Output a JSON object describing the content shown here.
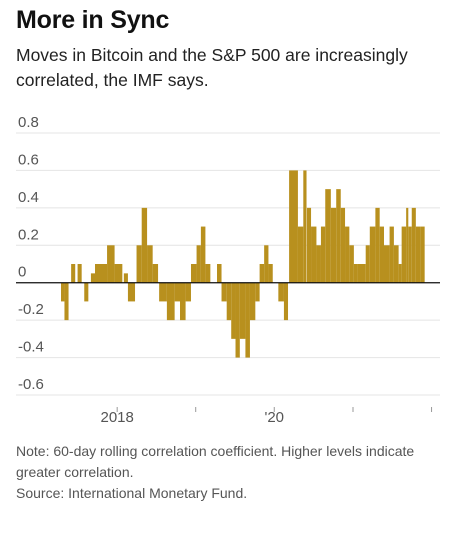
{
  "header": {
    "title": "More in Sync",
    "subtitle": "Moves in Bitcoin and the S&P 500 are increasingly correlated, the IMF says."
  },
  "footer": {
    "note": "Note: 60-day rolling correlation coefficient. Higher levels indicate greater correlation.",
    "source": "Source: International Monetary Fund."
  },
  "colors": {
    "bar": "#b8901e",
    "zero_line": "#111111",
    "grid": "#e4e4e4",
    "text": "#555555"
  },
  "chart_data": {
    "type": "bar",
    "title": "More in Sync",
    "xlabel": "",
    "ylabel": "",
    "ylim": [
      -0.6,
      0.8
    ],
    "yticks": [
      {
        "value": 0.8,
        "label": "0.8"
      },
      {
        "value": 0.6,
        "label": "0.6"
      },
      {
        "value": 0.4,
        "label": "0.4"
      },
      {
        "value": 0.2,
        "label": "0.2"
      },
      {
        "value": 0,
        "label": "0"
      },
      {
        "value": -0.2,
        "label": "-0.2"
      },
      {
        "value": -0.4,
        "label": "-0.4"
      },
      {
        "value": -0.6,
        "label": "-0.6"
      }
    ],
    "xticks": [
      {
        "date": "2018-01-01",
        "label": "2018"
      },
      {
        "date": "2019-01-01",
        "label": ""
      },
      {
        "date": "2020-01-01",
        "label": "'20"
      },
      {
        "date": "2021-01-01",
        "label": ""
      },
      {
        "date": "2022-01-01",
        "label": ""
      }
    ],
    "x_range": [
      "2017-04-01",
      "2022-01-31"
    ],
    "grid": true,
    "legend": "none",
    "series": [
      {
        "values": [
          {
            "start": "2017-04-15",
            "end": "2017-05-01",
            "value": -0.1
          },
          {
            "start": "2017-05-01",
            "end": "2017-05-20",
            "value": -0.2
          },
          {
            "start": "2017-06-01",
            "end": "2017-06-20",
            "value": 0.1
          },
          {
            "start": "2017-07-01",
            "end": "2017-07-20",
            "value": 0.1
          },
          {
            "start": "2017-08-01",
            "end": "2017-08-20",
            "value": -0.1
          },
          {
            "start": "2017-09-01",
            "end": "2017-09-20",
            "value": 0.05
          },
          {
            "start": "2017-09-20",
            "end": "2017-11-15",
            "value": 0.1
          },
          {
            "start": "2017-11-15",
            "end": "2017-12-20",
            "value": 0.2
          },
          {
            "start": "2017-12-20",
            "end": "2018-01-25",
            "value": 0.1
          },
          {
            "start": "2018-02-01",
            "end": "2018-02-20",
            "value": 0.05
          },
          {
            "start": "2018-02-20",
            "end": "2018-03-25",
            "value": -0.1
          },
          {
            "start": "2018-04-01",
            "end": "2018-04-25",
            "value": 0.2
          },
          {
            "start": "2018-04-25",
            "end": "2018-05-20",
            "value": 0.4
          },
          {
            "start": "2018-05-20",
            "end": "2018-06-15",
            "value": 0.2
          },
          {
            "start": "2018-06-15",
            "end": "2018-07-10",
            "value": 0.1
          },
          {
            "start": "2018-07-15",
            "end": "2018-08-20",
            "value": -0.1
          },
          {
            "start": "2018-08-20",
            "end": "2018-09-25",
            "value": -0.2
          },
          {
            "start": "2018-09-25",
            "end": "2018-10-20",
            "value": -0.1
          },
          {
            "start": "2018-10-20",
            "end": "2018-11-15",
            "value": -0.2
          },
          {
            "start": "2018-11-15",
            "end": "2018-12-10",
            "value": -0.1
          },
          {
            "start": "2018-12-10",
            "end": "2019-01-05",
            "value": 0.1
          },
          {
            "start": "2019-01-05",
            "end": "2019-01-25",
            "value": 0.2
          },
          {
            "start": "2019-01-25",
            "end": "2019-02-15",
            "value": 0.3
          },
          {
            "start": "2019-02-15",
            "end": "2019-03-10",
            "value": 0.1
          },
          {
            "start": "2019-04-10",
            "end": "2019-05-01",
            "value": 0.1
          },
          {
            "start": "2019-05-01",
            "end": "2019-05-25",
            "value": -0.1
          },
          {
            "start": "2019-05-25",
            "end": "2019-06-15",
            "value": -0.2
          },
          {
            "start": "2019-06-15",
            "end": "2019-07-05",
            "value": -0.3
          },
          {
            "start": "2019-07-05",
            "end": "2019-07-25",
            "value": -0.4
          },
          {
            "start": "2019-07-25",
            "end": "2019-08-20",
            "value": -0.3
          },
          {
            "start": "2019-08-20",
            "end": "2019-09-10",
            "value": -0.4
          },
          {
            "start": "2019-09-10",
            "end": "2019-10-05",
            "value": -0.2
          },
          {
            "start": "2019-10-05",
            "end": "2019-10-25",
            "value": -0.1
          },
          {
            "start": "2019-10-25",
            "end": "2019-11-15",
            "value": 0.1
          },
          {
            "start": "2019-11-15",
            "end": "2019-12-05",
            "value": 0.2
          },
          {
            "start": "2019-12-05",
            "end": "2019-12-25",
            "value": 0.1
          },
          {
            "start": "2020-01-20",
            "end": "2020-02-15",
            "value": -0.1
          },
          {
            "start": "2020-02-15",
            "end": "2020-03-05",
            "value": -0.2
          },
          {
            "start": "2020-03-10",
            "end": "2020-04-20",
            "value": 0.6
          },
          {
            "start": "2020-04-20",
            "end": "2020-05-15",
            "value": 0.3
          },
          {
            "start": "2020-05-15",
            "end": "2020-05-30",
            "value": 0.6
          },
          {
            "start": "2020-06-01",
            "end": "2020-06-20",
            "value": 0.4
          },
          {
            "start": "2020-06-20",
            "end": "2020-07-15",
            "value": 0.3
          },
          {
            "start": "2020-07-15",
            "end": "2020-08-05",
            "value": 0.2
          },
          {
            "start": "2020-08-05",
            "end": "2020-08-25",
            "value": 0.3
          },
          {
            "start": "2020-08-25",
            "end": "2020-09-20",
            "value": 0.5
          },
          {
            "start": "2020-09-20",
            "end": "2020-10-15",
            "value": 0.4
          },
          {
            "start": "2020-10-15",
            "end": "2020-11-05",
            "value": 0.5
          },
          {
            "start": "2020-11-05",
            "end": "2020-11-25",
            "value": 0.4
          },
          {
            "start": "2020-11-25",
            "end": "2020-12-15",
            "value": 0.3
          },
          {
            "start": "2020-12-15",
            "end": "2021-01-05",
            "value": 0.2
          },
          {
            "start": "2021-01-05",
            "end": "2021-01-20",
            "value": 0.1
          },
          {
            "start": "2021-01-20",
            "end": "2021-03-01",
            "value": 0.1
          },
          {
            "start": "2021-03-01",
            "end": "2021-03-20",
            "value": 0.2
          },
          {
            "start": "2021-03-20",
            "end": "2021-04-15",
            "value": 0.3
          },
          {
            "start": "2021-04-15",
            "end": "2021-05-05",
            "value": 0.4
          },
          {
            "start": "2021-05-05",
            "end": "2021-05-25",
            "value": 0.3
          },
          {
            "start": "2021-05-25",
            "end": "2021-06-20",
            "value": 0.2
          },
          {
            "start": "2021-06-20",
            "end": "2021-07-10",
            "value": 0.3
          },
          {
            "start": "2021-07-10",
            "end": "2021-08-01",
            "value": 0.2
          },
          {
            "start": "2021-08-01",
            "end": "2021-08-15",
            "value": 0.1
          },
          {
            "start": "2021-08-15",
            "end": "2021-09-05",
            "value": 0.3
          },
          {
            "start": "2021-09-05",
            "end": "2021-09-15",
            "value": 0.4
          },
          {
            "start": "2021-09-15",
            "end": "2021-10-01",
            "value": 0.3
          },
          {
            "start": "2021-10-01",
            "end": "2021-10-20",
            "value": 0.4
          },
          {
            "start": "2021-10-20",
            "end": "2021-11-10",
            "value": 0.3
          },
          {
            "start": "2021-11-10",
            "end": "2021-11-30",
            "value": 0.3
          }
        ]
      }
    ]
  }
}
